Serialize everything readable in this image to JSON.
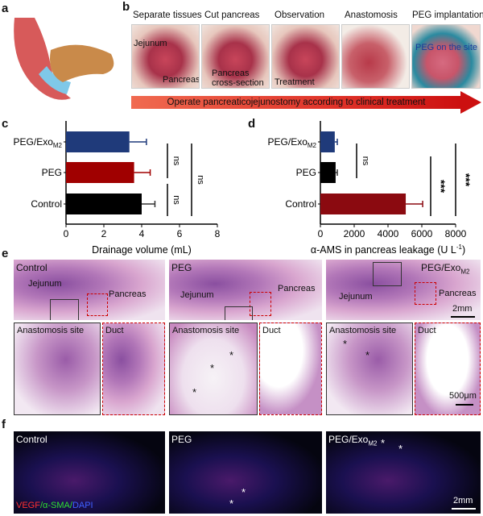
{
  "panels": {
    "a": "a",
    "b": "b",
    "c": "c",
    "d": "d",
    "e": "e",
    "f": "f"
  },
  "panel_b": {
    "steps": [
      "Separate tissues",
      "Cut pancreas",
      "Observation",
      "Anastomosis",
      "PEG implantation"
    ],
    "annotations": {
      "jejunum": "Jejunum",
      "pancreas": "Pancreas",
      "cross_section_1": "Pancreas",
      "cross_section_2": "cross-section",
      "treatment": "Treatment",
      "peg_site": "PEG on the site"
    },
    "arrow_text": "Operate pancreaticojejunostomy according to clinical treatment"
  },
  "chart_data": [
    {
      "type": "bar",
      "orientation": "horizontal",
      "categories": [
        "PEG/Exo",
        "PEG",
        "Control"
      ],
      "category_subscripts": [
        "M2",
        "",
        ""
      ],
      "values": [
        3.35,
        3.6,
        4.0
      ],
      "error": [
        0.9,
        0.85,
        0.7
      ],
      "colors": [
        "#1f3a7a",
        "#a00000",
        "#000000"
      ],
      "xlabel": "Drainage volume (mL)",
      "xlim": [
        0,
        8
      ],
      "ticks": [
        "0",
        "2",
        "4",
        "6",
        "8"
      ],
      "significance": [
        {
          "pair": "PEG/Exo-PEG",
          "label": "ns"
        },
        {
          "pair": "PEG-Control",
          "label": "ns"
        },
        {
          "pair": "PEG/Exo-Control",
          "label": "ns"
        }
      ]
    },
    {
      "type": "bar",
      "orientation": "horizontal",
      "categories": [
        "PEG/Exo",
        "PEG",
        "Control"
      ],
      "category_subscripts": [
        "M2",
        "",
        ""
      ],
      "values": [
        850,
        900,
        5050
      ],
      "error": [
        150,
        100,
        1000
      ],
      "colors": [
        "#1f3a7a",
        "#000000",
        "#8b0a10"
      ],
      "xlabel": "α-AMS in pancreas leakage (U L",
      "xlabel_sup": "-1",
      "xlabel_end": ")",
      "xlim": [
        0,
        8000
      ],
      "ticks": [
        "0",
        "2000",
        "4000",
        "6000",
        "8000"
      ],
      "significance": [
        {
          "pair": "PEG/Exo-PEG",
          "label": "ns"
        },
        {
          "pair": "PEG-Control",
          "label": "***"
        },
        {
          "pair": "PEG/Exo-Control",
          "label": "***"
        }
      ]
    }
  ],
  "panel_e": {
    "groups": [
      "Control",
      "PEG",
      "PEG/Exo"
    ],
    "group_sub": "M2",
    "jejunum": "Jejunum",
    "pancreas": "Pancreas",
    "anastomosis": "Anastomosis site",
    "duct": "Duct",
    "scale_top": "2mm",
    "scale_bottom": "500μm",
    "star": "*"
  },
  "panel_f": {
    "groups": [
      "Control",
      "PEG",
      "PEG/Exo"
    ],
    "group_sub": "M2",
    "legend": {
      "vegf": "VEGF",
      "sma": "/α-SMA/",
      "dapi": "DAPI"
    },
    "colors": {
      "vegf": "#ff3030",
      "sma": "#30e030",
      "dapi": "#4060ff"
    },
    "scale": "2mm",
    "star": "*"
  }
}
